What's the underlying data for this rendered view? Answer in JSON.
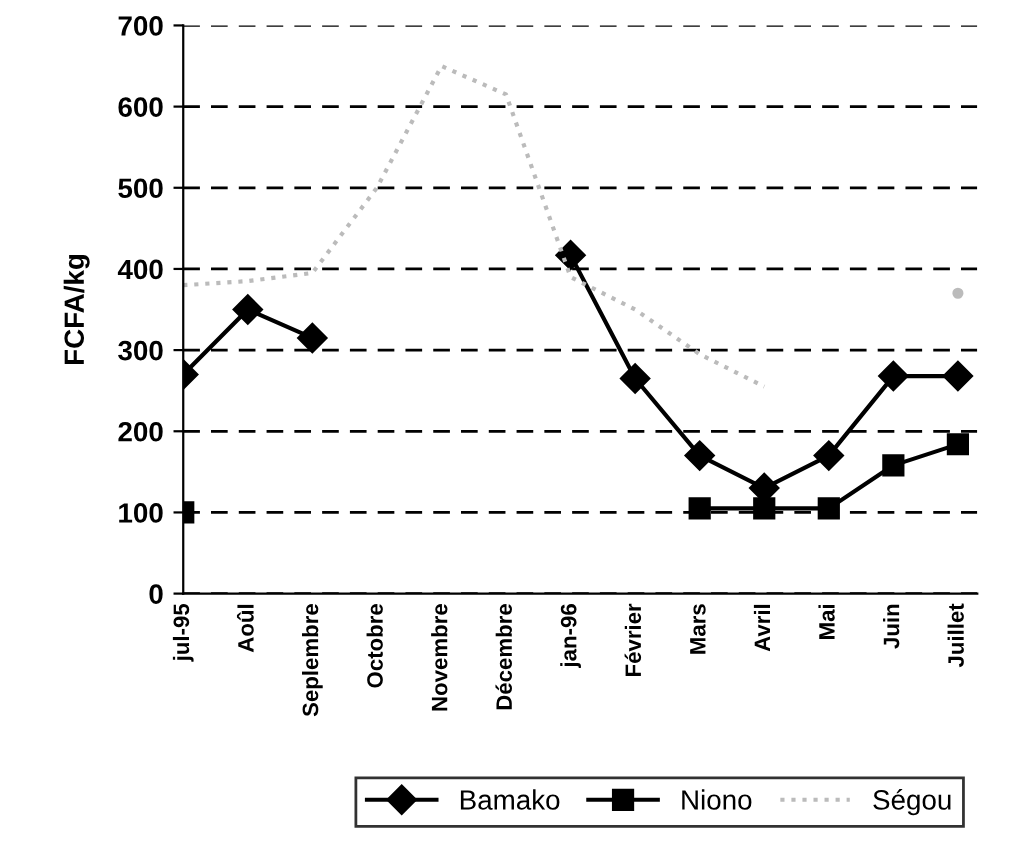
{
  "chart_data": {
    "type": "line",
    "ylabel": "FCFA/kg",
    "categories": [
      "jul-95",
      "Aoûl",
      "Seplembre",
      "Octobre",
      "Novembre",
      "Décembre",
      "jan-96",
      "Février",
      "Mars",
      "Avril",
      "Mai",
      "Juin",
      "Juillet"
    ],
    "series": [
      {
        "name": "Bamako",
        "color": "#000000",
        "marker": "diamond",
        "line_style": "solid",
        "values": [
          270,
          350,
          315,
          null,
          null,
          null,
          417,
          265,
          170,
          130,
          170,
          268,
          268
        ]
      },
      {
        "name": "Niono",
        "color": "#000000",
        "marker": "square",
        "line_style": "solid",
        "values": [
          100,
          null,
          null,
          null,
          null,
          null,
          null,
          null,
          105,
          105,
          105,
          158,
          184
        ]
      },
      {
        "name": "Ségou",
        "color": "#bbbbbb",
        "marker": "none",
        "line_style": "dotted",
        "values": [
          380,
          385,
          395,
          500,
          650,
          615,
          390,
          350,
          295,
          255,
          null,
          null,
          370
        ]
      }
    ],
    "ylim": [
      0,
      700
    ],
    "yticks": [
      0,
      100,
      200,
      300,
      400,
      500,
      600,
      700
    ],
    "grid": "y",
    "legend": "bottom"
  }
}
